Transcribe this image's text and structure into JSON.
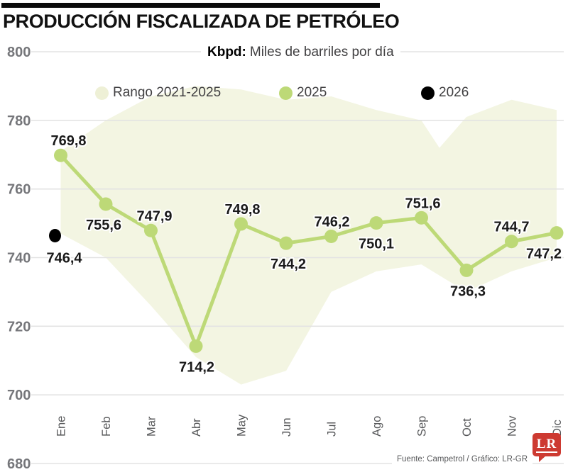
{
  "header": {
    "title": "PRODUCCIÓN FISCALIZADA DE PETRÓLEO"
  },
  "subtitle": {
    "bold": "Kbpd:",
    "rest": "Miles de barriles por día"
  },
  "legend": {
    "items": [
      {
        "label": "Rango 2021-2025",
        "color": "#eef0d6",
        "type": "band-swatch"
      },
      {
        "label": "2025",
        "color": "#bdd977",
        "type": "dot"
      },
      {
        "label": "2026",
        "color": "#000000",
        "type": "dot"
      }
    ]
  },
  "footer": {
    "source": "Fuente: Campetrol / Gráfico: LR-GR",
    "logo": "LR"
  },
  "colors": {
    "line_2025": "#bdd977",
    "dot_2026": "#000000",
    "range_band": "#f3f5e2",
    "gridline": "#e3e3e3",
    "y_tick_label": "#75767a",
    "x_tick_label": "#57585a",
    "value_label": "#1a1a1a",
    "title_bar": "#0b0b0b",
    "logo_red": "#cd3a31"
  },
  "chart_data": {
    "type": "line",
    "title": "PRODUCCIÓN FISCALIZADA DE PETRÓLEO",
    "unit_note": "Kbpd: Miles de barriles por día",
    "categories": [
      "Ene",
      "Feb",
      "Mar",
      "Abr",
      "May",
      "Jun",
      "Jul",
      "Ago",
      "Sep",
      "Oct",
      "Nov",
      "Dic"
    ],
    "ylim": [
      680,
      800
    ],
    "yticks": [
      800,
      780,
      760,
      740,
      720,
      700,
      680
    ],
    "grid": true,
    "legend_position": "top",
    "series": [
      {
        "name": "2025",
        "color": "#bdd977",
        "values": [
          769.8,
          755.6,
          747.9,
          714.2,
          749.8,
          744.2,
          746.2,
          750.1,
          751.6,
          736.3,
          744.7,
          747.2
        ],
        "labels": [
          "769,8",
          "755,6",
          "747,9",
          "714,2",
          "749,8",
          "744,2",
          "746,2",
          "750,1",
          "751,6",
          "736,3",
          "744,7",
          "747,2"
        ],
        "label_pos": [
          "above",
          "below",
          "above",
          "below",
          "above",
          "below",
          "above",
          "below",
          "above",
          "below",
          "above",
          "below"
        ],
        "label_dx": [
          11,
          -3,
          5,
          1,
          2,
          3,
          1,
          0,
          2,
          2,
          0,
          -18
        ]
      },
      {
        "name": "2026",
        "color": "#000000",
        "points": [
          {
            "category": "Ene",
            "value": 746.4,
            "label": "746,4"
          }
        ]
      }
    ],
    "range_band": {
      "name": "Rango 2021-2025",
      "color": "#f3f5e2",
      "note": "min-max envelope 2021-2025, values estimated from pixels",
      "upper": [
        [
          0,
          771
        ],
        [
          1,
          780
        ],
        [
          2,
          787
        ],
        [
          3,
          790
        ],
        [
          4,
          789
        ],
        [
          5,
          786
        ],
        [
          6,
          787
        ],
        [
          7,
          783
        ],
        [
          8,
          780
        ],
        [
          8.4,
          772
        ],
        [
          9,
          781
        ],
        [
          10,
          786
        ],
        [
          11,
          783
        ]
      ],
      "lower": [
        [
          0,
          747
        ],
        [
          1,
          740
        ],
        [
          2,
          726
        ],
        [
          3,
          711
        ],
        [
          4,
          703
        ],
        [
          5,
          707
        ],
        [
          6,
          730
        ],
        [
          7,
          736
        ],
        [
          8,
          738
        ],
        [
          9,
          730
        ],
        [
          10,
          736
        ],
        [
          11,
          740
        ]
      ]
    }
  }
}
